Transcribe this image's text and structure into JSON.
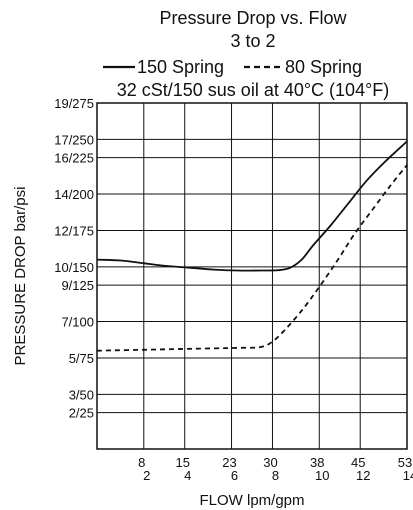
{
  "chart_data": {
    "type": "line",
    "title": "Pressure Drop vs. Flow",
    "subtitle": "3 to 2",
    "legend": [
      {
        "label": "150 Spring",
        "style": "solid"
      },
      {
        "label": "80 Spring",
        "style": "dashed"
      }
    ],
    "condition": "32 cSt/150 sus oil at 40°C (104°F)",
    "xlabel": "FLOW lpm/gpm",
    "ylabel": "PRESSURE DROP bar/psi",
    "xlim": [
      0,
      53
    ],
    "ylim": [
      0,
      19
    ],
    "x_ticks": [
      {
        "value": 8,
        "lpm": "8",
        "gpm": "2"
      },
      {
        "value": 15,
        "lpm": "15",
        "gpm": "4"
      },
      {
        "value": 23,
        "lpm": "23",
        "gpm": "6"
      },
      {
        "value": 30,
        "lpm": "30",
        "gpm": "8"
      },
      {
        "value": 38,
        "lpm": "38",
        "gpm": "10"
      },
      {
        "value": 45,
        "lpm": "45",
        "gpm": "12"
      },
      {
        "value": 53,
        "lpm": "53",
        "gpm": "14"
      }
    ],
    "y_ticks": [
      {
        "value": 19,
        "label": "19/275"
      },
      {
        "value": 17,
        "label": "17/250"
      },
      {
        "value": 16,
        "label": "16/225"
      },
      {
        "value": 14,
        "label": "14/200"
      },
      {
        "value": 12,
        "label": "12/175"
      },
      {
        "value": 10,
        "label": "10/150"
      },
      {
        "value": 9,
        "label": "9/125"
      },
      {
        "value": 7,
        "label": "7/100"
      },
      {
        "value": 5,
        "label": "5/75"
      },
      {
        "value": 3,
        "label": "3/50"
      },
      {
        "value": 2,
        "label": "2/25"
      }
    ],
    "grid": true,
    "series": [
      {
        "name": "150 Spring",
        "style": "solid",
        "x": [
          0,
          4,
          8,
          12,
          16,
          20,
          24,
          28,
          31,
          33,
          35,
          37,
          40,
          43,
          46,
          49,
          52,
          53
        ],
        "y": [
          10.4,
          10.35,
          10.2,
          10.05,
          9.95,
          9.85,
          9.8,
          9.8,
          9.82,
          9.95,
          10.4,
          11.2,
          12.3,
          13.5,
          14.7,
          15.7,
          16.6,
          16.9
        ]
      },
      {
        "name": "80 Spring",
        "style": "dashed",
        "x": [
          0,
          8,
          16,
          24,
          28,
          30,
          32,
          35,
          38,
          41,
          44,
          47,
          50,
          53
        ],
        "y": [
          5.4,
          5.45,
          5.5,
          5.55,
          5.6,
          5.9,
          6.5,
          7.6,
          8.9,
          10.3,
          11.8,
          13.1,
          14.4,
          15.6
        ]
      }
    ]
  }
}
